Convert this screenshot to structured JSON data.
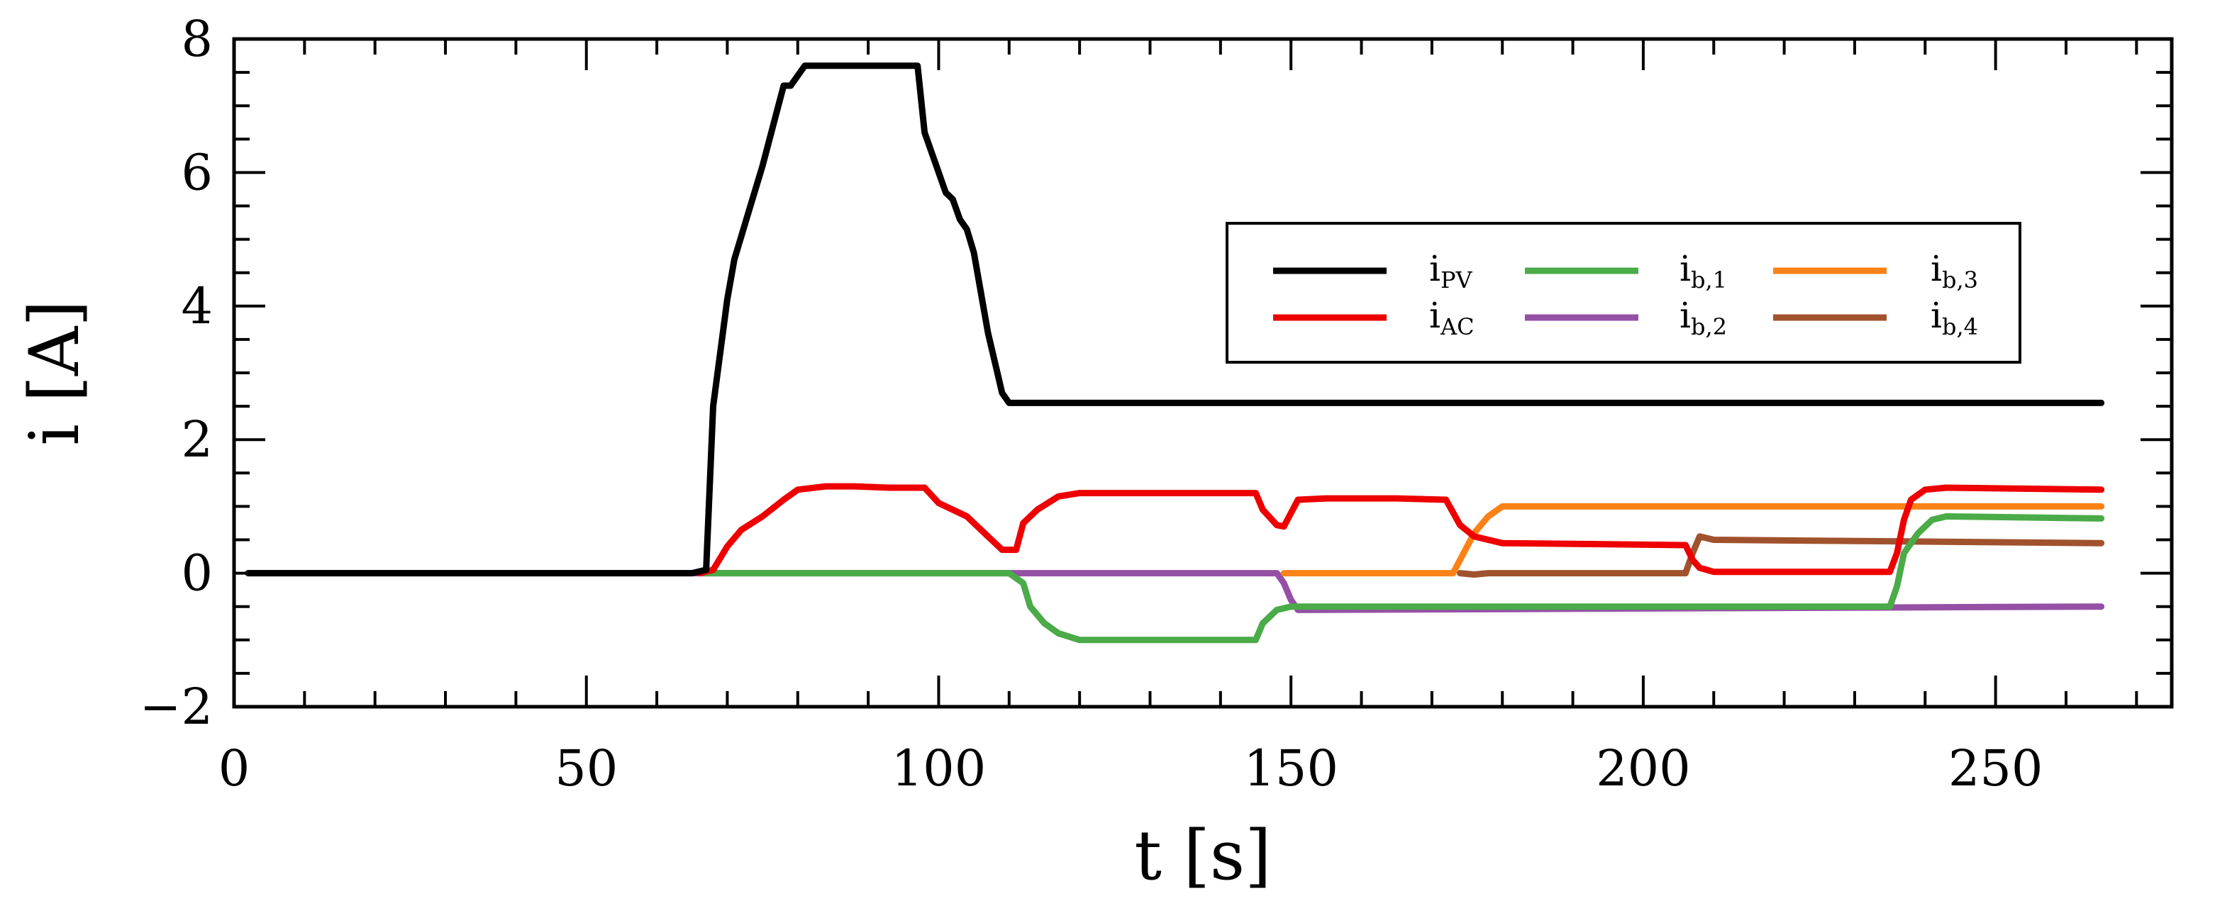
{
  "chart_data": {
    "type": "line",
    "title": "",
    "xlabel": "t [s]",
    "ylabel": "i [A]",
    "xlim": [
      0,
      275
    ],
    "ylim": [
      -2,
      8
    ],
    "xticks": [
      0,
      50,
      100,
      150,
      200,
      250
    ],
    "xtick_labels": [
      "0",
      "50",
      "100",
      "150",
      "200",
      "250"
    ],
    "yticks": [
      -2,
      0,
      2,
      4,
      6,
      8
    ],
    "ytick_labels": [
      "−2",
      "0",
      "2",
      "4",
      "6",
      "8"
    ],
    "x_minor_step": 10,
    "y_minor_step": 0.5,
    "grid": false,
    "legend_position": "right",
    "colors": {
      "i_PV": "#000000",
      "i_AC": "#ee0000",
      "i_b1": "#4aab48",
      "i_b2": "#9550a6",
      "i_b3": "#fb8216",
      "i_b4": "#a0522d"
    },
    "series": [
      {
        "key": "i_PV",
        "label_main": "i",
        "label_sub": "PV",
        "points": [
          [
            2,
            0
          ],
          [
            65,
            0
          ],
          [
            67,
            0.05
          ],
          [
            68,
            2.5
          ],
          [
            70,
            4.1
          ],
          [
            71,
            4.7
          ],
          [
            73,
            5.4
          ],
          [
            75,
            6.1
          ],
          [
            76,
            6.5
          ],
          [
            78,
            7.3
          ],
          [
            79,
            7.3
          ],
          [
            81,
            7.6
          ],
          [
            97,
            7.6
          ],
          [
            98,
            6.6
          ],
          [
            100,
            6.0
          ],
          [
            101,
            5.7
          ],
          [
            102,
            5.6
          ],
          [
            103,
            5.3
          ],
          [
            104,
            5.15
          ],
          [
            105,
            4.8
          ],
          [
            107,
            3.6
          ],
          [
            109,
            2.7
          ],
          [
            110,
            2.55
          ],
          [
            265,
            2.55
          ]
        ]
      },
      {
        "key": "i_AC",
        "label_main": "i",
        "label_sub": "AC",
        "points": [
          [
            66,
            0
          ],
          [
            68,
            0.05
          ],
          [
            70,
            0.4
          ],
          [
            72,
            0.65
          ],
          [
            75,
            0.85
          ],
          [
            78,
            1.1
          ],
          [
            80,
            1.25
          ],
          [
            84,
            1.3
          ],
          [
            88,
            1.3
          ],
          [
            93,
            1.28
          ],
          [
            98,
            1.28
          ],
          [
            100,
            1.05
          ],
          [
            104,
            0.85
          ],
          [
            107,
            0.55
          ],
          [
            109,
            0.35
          ],
          [
            111,
            0.35
          ],
          [
            112,
            0.75
          ],
          [
            114,
            0.95
          ],
          [
            117,
            1.15
          ],
          [
            120,
            1.2
          ],
          [
            140,
            1.2
          ],
          [
            145,
            1.2
          ],
          [
            146,
            0.95
          ],
          [
            148,
            0.72
          ],
          [
            149,
            0.7
          ],
          [
            151,
            1.1
          ],
          [
            155,
            1.12
          ],
          [
            165,
            1.12
          ],
          [
            172,
            1.1
          ],
          [
            174,
            0.72
          ],
          [
            176,
            0.55
          ],
          [
            180,
            0.45
          ],
          [
            206,
            0.42
          ],
          [
            207,
            0.2
          ],
          [
            208,
            0.08
          ],
          [
            210,
            0.02
          ],
          [
            235,
            0.02
          ],
          [
            236,
            0.3
          ],
          [
            237,
            0.8
          ],
          [
            238,
            1.1
          ],
          [
            240,
            1.25
          ],
          [
            243,
            1.28
          ],
          [
            265,
            1.25
          ]
        ]
      },
      {
        "key": "i_b1",
        "label_main": "i",
        "label_sub": "b,1",
        "points": [
          [
            67,
            0
          ],
          [
            110,
            0
          ],
          [
            112,
            -0.15
          ],
          [
            113,
            -0.5
          ],
          [
            115,
            -0.75
          ],
          [
            117,
            -0.9
          ],
          [
            120,
            -1.0
          ],
          [
            130,
            -1.0
          ],
          [
            145,
            -1.0
          ],
          [
            146,
            -0.75
          ],
          [
            148,
            -0.55
          ],
          [
            150,
            -0.5
          ],
          [
            235,
            -0.5
          ],
          [
            236,
            -0.2
          ],
          [
            237,
            0.3
          ],
          [
            239,
            0.6
          ],
          [
            241,
            0.8
          ],
          [
            243,
            0.85
          ],
          [
            265,
            0.82
          ]
        ]
      },
      {
        "key": "i_b2",
        "label_main": "i",
        "label_sub": "b,2",
        "points": [
          [
            2,
            0
          ],
          [
            68,
            0
          ],
          [
            148,
            0
          ],
          [
            149,
            -0.15
          ],
          [
            150,
            -0.4
          ],
          [
            151,
            -0.55
          ],
          [
            153,
            -0.55
          ],
          [
            265,
            -0.5
          ]
        ]
      },
      {
        "key": "i_b3",
        "label_main": "i",
        "label_sub": "b,3",
        "points": [
          [
            149,
            0
          ],
          [
            173,
            0
          ],
          [
            174,
            0.2
          ],
          [
            176,
            0.6
          ],
          [
            178,
            0.85
          ],
          [
            180,
            1.0
          ],
          [
            190,
            1.0
          ],
          [
            265,
            1.0
          ]
        ]
      },
      {
        "key": "i_b4",
        "label_main": "i",
        "label_sub": "b,4",
        "points": [
          [
            174,
            0
          ],
          [
            176,
            -0.02
          ],
          [
            178,
            0
          ],
          [
            206,
            0
          ],
          [
            207,
            0.3
          ],
          [
            208,
            0.55
          ],
          [
            210,
            0.5
          ],
          [
            265,
            0.45
          ]
        ]
      }
    ]
  }
}
